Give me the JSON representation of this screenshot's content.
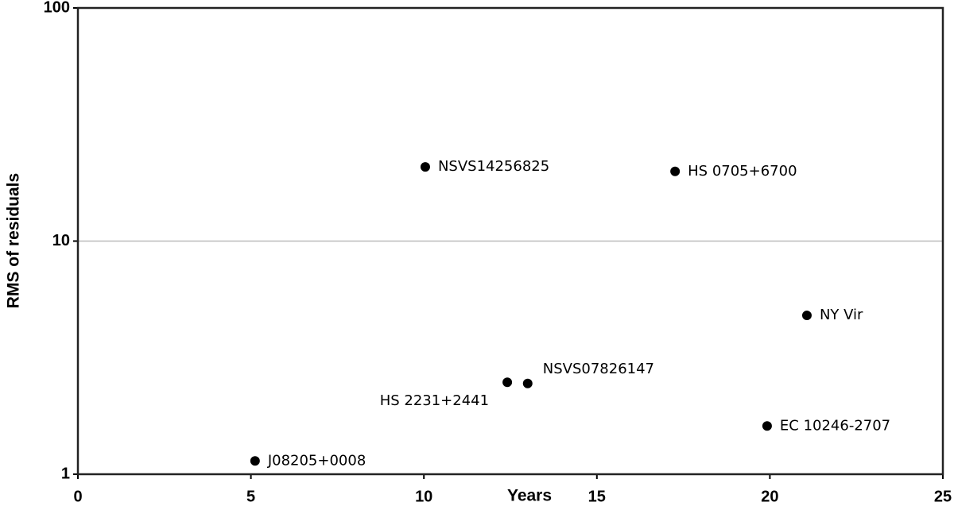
{
  "chart_data": {
    "type": "scatter",
    "x_label": "Years",
    "y_label": "RMS of residuals",
    "x": [
      5.12,
      10.04,
      17.26,
      21.07,
      12.41,
      13.0,
      19.92
    ],
    "values": [
      1.14,
      20.8,
      19.9,
      4.8,
      2.48,
      2.45,
      1.61
    ],
    "labels": [
      "J08205+0008",
      "NSVS14256825",
      "HS 0705+6700",
      "NY Vir",
      "HS 2231+2441",
      "NSVS07826147",
      "EC 10246-2707"
    ],
    "color": "#000000",
    "xlim": [
      0,
      25
    ],
    "xticks": [
      0,
      5,
      10,
      15,
      20,
      25
    ],
    "ylim": [
      1,
      100
    ],
    "yticks": [
      1,
      10,
      100
    ],
    "ylog": true,
    "grid": true
  }
}
